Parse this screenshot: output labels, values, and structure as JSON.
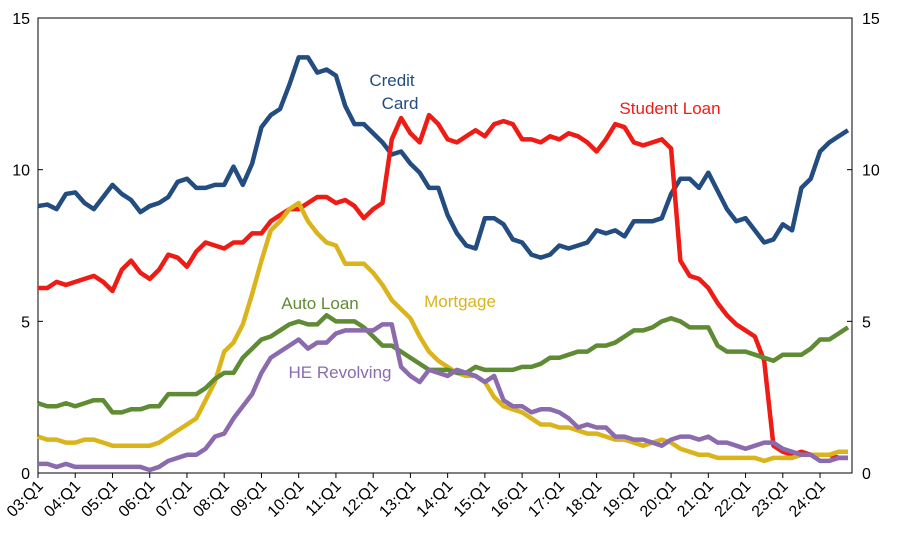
{
  "chart_data": {
    "type": "line",
    "categories": [
      "03:Q1",
      null,
      null,
      null,
      "04:Q1",
      null,
      null,
      null,
      "05:Q1",
      null,
      null,
      null,
      "06:Q1",
      null,
      null,
      null,
      "07:Q1",
      null,
      null,
      null,
      "08:Q1",
      null,
      null,
      null,
      "09:Q1",
      null,
      null,
      null,
      "10:Q1",
      null,
      null,
      null,
      "11:Q1",
      null,
      null,
      null,
      "12:Q1",
      null,
      null,
      null,
      "13:Q1",
      null,
      null,
      null,
      "14:Q1",
      null,
      null,
      null,
      "15:Q1",
      null,
      null,
      null,
      "16:Q1",
      null,
      null,
      null,
      "17:Q1",
      null,
      null,
      null,
      "18:Q1",
      null,
      null,
      null,
      "19:Q1",
      null,
      null,
      null,
      "20:Q1",
      null,
      null,
      null,
      "21:Q1",
      null,
      null,
      null,
      "22:Q1",
      null,
      null,
      null,
      "23:Q1",
      null,
      null,
      null,
      "24:Q1",
      null,
      null,
      null
    ],
    "ylim": [
      0,
      15
    ],
    "yticks": [
      0,
      5,
      10,
      15
    ],
    "y2lim": [
      0,
      15
    ],
    "y2ticks": [
      0,
      5,
      10,
      15
    ],
    "series": [
      {
        "name": "Credit Card",
        "color": "#234d80",
        "values": [
          8.8,
          8.85,
          8.7,
          9.2,
          9.25,
          8.9,
          8.7,
          9.1,
          9.5,
          9.2,
          9.0,
          8.6,
          8.8,
          8.9,
          9.1,
          9.6,
          9.7,
          9.4,
          9.4,
          9.5,
          9.5,
          10.1,
          9.5,
          10.2,
          11.4,
          11.8,
          12.0,
          12.8,
          13.7,
          13.7,
          13.2,
          13.3,
          13.1,
          12.1,
          11.5,
          11.5,
          11.2,
          10.9,
          10.5,
          10.6,
          10.2,
          9.9,
          9.4,
          9.4,
          8.5,
          7.9,
          7.5,
          7.4,
          8.4,
          8.4,
          8.2,
          7.7,
          7.6,
          7.2,
          7.1,
          7.2,
          7.5,
          7.4,
          7.5,
          7.6,
          8.0,
          7.9,
          8.0,
          7.8,
          8.3,
          8.3,
          8.3,
          8.4,
          9.2,
          9.7,
          9.7,
          9.4,
          9.9,
          9.3,
          8.7,
          8.3,
          8.4,
          8.0,
          7.6,
          7.7,
          8.2,
          8.0,
          9.4,
          9.7,
          10.6,
          10.9,
          11.1,
          11.3
        ]
      },
      {
        "name": "Student Loan",
        "color": "#ee1c14",
        "values": [
          6.1,
          6.1,
          6.3,
          6.2,
          6.3,
          6.4,
          6.5,
          6.3,
          6.0,
          6.7,
          7.0,
          6.6,
          6.4,
          6.7,
          7.2,
          7.1,
          6.8,
          7.3,
          7.6,
          7.5,
          7.4,
          7.6,
          7.6,
          7.9,
          7.9,
          8.3,
          8.5,
          8.7,
          8.7,
          8.9,
          9.1,
          9.1,
          8.9,
          9.0,
          8.8,
          8.4,
          8.7,
          8.9,
          11.0,
          11.7,
          11.2,
          10.9,
          11.8,
          11.5,
          11.0,
          10.9,
          11.1,
          11.3,
          11.1,
          11.5,
          11.6,
          11.5,
          11.0,
          11.0,
          10.9,
          11.1,
          11.0,
          11.2,
          11.1,
          10.9,
          10.6,
          11.0,
          11.5,
          11.4,
          10.9,
          10.8,
          10.9,
          11.0,
          10.7,
          7.0,
          6.5,
          6.4,
          6.1,
          5.6,
          5.2,
          4.9,
          4.7,
          4.5,
          3.7,
          0.9,
          0.7,
          0.6,
          0.7,
          0.6,
          0.6,
          0.6,
          0.5,
          0.5
        ]
      },
      {
        "name": "Mortgage",
        "color": "#dbb41c",
        "values": [
          1.2,
          1.1,
          1.1,
          1.0,
          1.0,
          1.1,
          1.1,
          1.0,
          0.9,
          0.9,
          0.9,
          0.9,
          0.9,
          1.0,
          1.2,
          1.4,
          1.6,
          1.8,
          2.4,
          3.0,
          4.0,
          4.3,
          4.9,
          5.9,
          7.0,
          8.0,
          8.3,
          8.7,
          8.9,
          8.3,
          7.9,
          7.6,
          7.5,
          6.9,
          6.9,
          6.9,
          6.6,
          6.2,
          5.7,
          5.4,
          5.1,
          4.5,
          4.0,
          3.7,
          3.5,
          3.3,
          3.2,
          3.2,
          3.0,
          2.5,
          2.2,
          2.1,
          2.0,
          1.8,
          1.6,
          1.6,
          1.5,
          1.5,
          1.4,
          1.3,
          1.3,
          1.2,
          1.1,
          1.1,
          1.0,
          0.9,
          1.0,
          1.1,
          1.0,
          0.8,
          0.7,
          0.6,
          0.6,
          0.5,
          0.5,
          0.5,
          0.5,
          0.5,
          0.4,
          0.5,
          0.5,
          0.5,
          0.6,
          0.6,
          0.6,
          0.6,
          0.7,
          0.7
        ]
      },
      {
        "name": "Auto Loan",
        "color": "#5e8b33",
        "values": [
          2.3,
          2.2,
          2.2,
          2.3,
          2.2,
          2.3,
          2.4,
          2.4,
          2.0,
          2.0,
          2.1,
          2.1,
          2.2,
          2.2,
          2.6,
          2.6,
          2.6,
          2.6,
          2.8,
          3.1,
          3.3,
          3.3,
          3.8,
          4.1,
          4.4,
          4.5,
          4.7,
          4.9,
          5.0,
          4.9,
          4.9,
          5.2,
          5.0,
          5.0,
          5.0,
          4.8,
          4.5,
          4.2,
          4.2,
          4.0,
          3.8,
          3.6,
          3.4,
          3.4,
          3.4,
          3.3,
          3.3,
          3.5,
          3.4,
          3.4,
          3.4,
          3.4,
          3.5,
          3.5,
          3.6,
          3.8,
          3.8,
          3.9,
          4.0,
          4.0,
          4.2,
          4.2,
          4.3,
          4.5,
          4.7,
          4.7,
          4.8,
          5.0,
          5.1,
          5.0,
          4.8,
          4.8,
          4.8,
          4.2,
          4.0,
          4.0,
          4.0,
          3.9,
          3.8,
          3.7,
          3.9,
          3.9,
          3.9,
          4.1,
          4.4,
          4.4,
          4.6,
          4.8
        ]
      },
      {
        "name": "HE Revolving",
        "color": "#8b6bae",
        "values": [
          0.3,
          0.3,
          0.2,
          0.3,
          0.2,
          0.2,
          0.2,
          0.2,
          0.2,
          0.2,
          0.2,
          0.2,
          0.1,
          0.2,
          0.4,
          0.5,
          0.6,
          0.6,
          0.8,
          1.2,
          1.3,
          1.8,
          2.2,
          2.6,
          3.3,
          3.8,
          4.0,
          4.2,
          4.4,
          4.1,
          4.3,
          4.3,
          4.6,
          4.7,
          4.7,
          4.7,
          4.7,
          4.9,
          4.9,
          3.5,
          3.2,
          3.0,
          3.4,
          3.3,
          3.2,
          3.4,
          3.3,
          3.2,
          3.0,
          3.2,
          2.4,
          2.2,
          2.2,
          2.0,
          2.1,
          2.1,
          2.0,
          1.8,
          1.5,
          1.6,
          1.5,
          1.5,
          1.2,
          1.2,
          1.1,
          1.1,
          1.0,
          0.9,
          1.1,
          1.2,
          1.2,
          1.1,
          1.2,
          1.0,
          1.0,
          0.9,
          0.8,
          0.9,
          1.0,
          1.0,
          0.8,
          0.7,
          0.6,
          0.6,
          0.4,
          0.4,
          0.5,
          0.5
        ]
      }
    ]
  }
}
